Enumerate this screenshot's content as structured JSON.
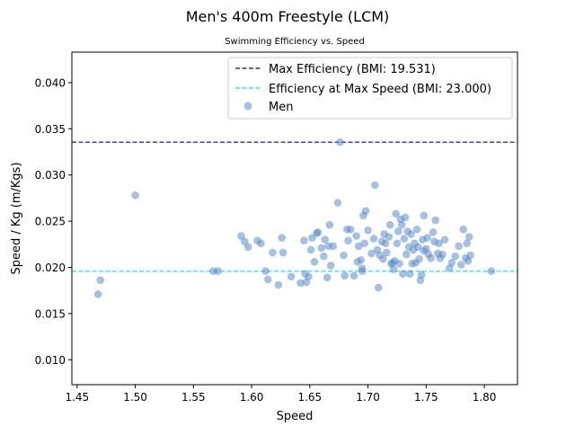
{
  "chart_data": {
    "type": "scatter",
    "title": "Men's 400m Freestyle (LCM)",
    "subtitle": "Swimming Efficiency vs. Speed",
    "xlabel": "Speed",
    "ylabel": "Speed / Kg (m/Kgs)",
    "xlim": [
      1.4455,
      1.8285
    ],
    "ylim": [
      0.0073,
      0.0433
    ],
    "xticks": [
      1.45,
      1.5,
      1.55,
      1.6,
      1.65,
      1.7,
      1.75,
      1.8
    ],
    "xtick_labels": [
      "1.45",
      "1.50",
      "1.55",
      "1.60",
      "1.65",
      "1.70",
      "1.75",
      "1.80"
    ],
    "yticks": [
      0.01,
      0.015,
      0.02,
      0.025,
      0.03,
      0.035,
      0.04
    ],
    "ytick_labels": [
      "0.010",
      "0.015",
      "0.020",
      "0.025",
      "0.030",
      "0.035",
      "0.040"
    ],
    "grid": false,
    "legend_position": "top-right",
    "reference_lines": [
      {
        "label": "Max Efficiency (BMI: 19.531)",
        "y": 0.03355,
        "color": "#0000cc",
        "style": "dashed"
      },
      {
        "label": "Efficiency at Max Speed (BMI: 23.000)",
        "y": 0.01958,
        "color": "#00e5ee",
        "style": "dashed"
      }
    ],
    "series": [
      {
        "name": "Men",
        "color": "#5b8cc6",
        "points": [
          [
            1.468,
            0.0171
          ],
          [
            1.47,
            0.0186
          ],
          [
            1.5,
            0.0278
          ],
          [
            1.567,
            0.0196
          ],
          [
            1.571,
            0.0196
          ],
          [
            1.591,
            0.0234
          ],
          [
            1.594,
            0.0228
          ],
          [
            1.597,
            0.0222
          ],
          [
            1.605,
            0.0229
          ],
          [
            1.608,
            0.0226
          ],
          [
            1.612,
            0.0196
          ],
          [
            1.614,
            0.0187
          ],
          [
            1.618,
            0.0216
          ],
          [
            1.623,
            0.0181
          ],
          [
            1.626,
            0.0232
          ],
          [
            1.627,
            0.0216
          ],
          [
            1.634,
            0.019
          ],
          [
            1.642,
            0.0183
          ],
          [
            1.645,
            0.0229
          ],
          [
            1.646,
            0.0193
          ],
          [
            1.647,
            0.0184
          ],
          [
            1.649,
            0.019
          ],
          [
            1.651,
            0.0219
          ],
          [
            1.652,
            0.0232
          ],
          [
            1.654,
            0.0206
          ],
          [
            1.656,
            0.0237
          ],
          [
            1.657,
            0.0238
          ],
          [
            1.66,
            0.0221
          ],
          [
            1.662,
            0.0212
          ],
          [
            1.663,
            0.023
          ],
          [
            1.665,
            0.0189
          ],
          [
            1.666,
            0.0223
          ],
          [
            1.667,
            0.0246
          ],
          [
            1.668,
            0.0202
          ],
          [
            1.67,
            0.0223
          ],
          [
            1.674,
            0.027
          ],
          [
            1.676,
            0.03355
          ],
          [
            1.679,
            0.0213
          ],
          [
            1.68,
            0.0191
          ],
          [
            1.682,
            0.0241
          ],
          [
            1.683,
            0.0229
          ],
          [
            1.685,
            0.0241
          ],
          [
            1.688,
            0.0191
          ],
          [
            1.69,
            0.0234
          ],
          [
            1.691,
            0.0206
          ],
          [
            1.692,
            0.0223
          ],
          [
            1.694,
            0.0208
          ],
          [
            1.695,
            0.0199
          ],
          [
            1.695,
            0.0196
          ],
          [
            1.696,
            0.0256
          ],
          [
            1.697,
            0.0226
          ],
          [
            1.698,
            0.0261
          ],
          [
            1.7,
            0.024
          ],
          [
            1.703,
            0.0215
          ],
          [
            1.705,
            0.0231
          ],
          [
            1.706,
            0.0289
          ],
          [
            1.708,
            0.0219
          ],
          [
            1.709,
            0.0178
          ],
          [
            1.71,
            0.0213
          ],
          [
            1.712,
            0.0228
          ],
          [
            1.713,
            0.0209
          ],
          [
            1.714,
            0.0236
          ],
          [
            1.715,
            0.0226
          ],
          [
            1.716,
            0.0216
          ],
          [
            1.718,
            0.0233
          ],
          [
            1.719,
            0.0246
          ],
          [
            1.72,
            0.0204
          ],
          [
            1.721,
            0.0205
          ],
          [
            1.722,
            0.0198
          ],
          [
            1.723,
            0.0207
          ],
          [
            1.724,
            0.0258
          ],
          [
            1.725,
            0.0226
          ],
          [
            1.726,
            0.0239
          ],
          [
            1.727,
            0.0204
          ],
          [
            1.728,
            0.0252
          ],
          [
            1.729,
            0.0246
          ],
          [
            1.73,
            0.0193
          ],
          [
            1.731,
            0.0231
          ],
          [
            1.732,
            0.0254
          ],
          [
            1.733,
            0.0214
          ],
          [
            1.734,
            0.0239
          ],
          [
            1.735,
            0.0222
          ],
          [
            1.736,
            0.0193
          ],
          [
            1.737,
            0.0236
          ],
          [
            1.738,
            0.0204
          ],
          [
            1.739,
            0.0219
          ],
          [
            1.74,
            0.0226
          ],
          [
            1.741,
            0.0205
          ],
          [
            1.742,
            0.0241
          ],
          [
            1.743,
            0.0222
          ],
          [
            1.744,
            0.0209
          ],
          [
            1.745,
            0.0186
          ],
          [
            1.746,
            0.0192
          ],
          [
            1.747,
            0.023
          ],
          [
            1.748,
            0.0218
          ],
          [
            1.748,
            0.0256
          ],
          [
            1.75,
            0.022
          ],
          [
            1.751,
            0.0232
          ],
          [
            1.752,
            0.0214
          ],
          [
            1.754,
            0.021
          ],
          [
            1.756,
            0.0238
          ],
          [
            1.757,
            0.0228
          ],
          [
            1.758,
            0.0251
          ],
          [
            1.76,
            0.0215
          ],
          [
            1.761,
            0.0226
          ],
          [
            1.762,
            0.021
          ],
          [
            1.764,
            0.0214
          ],
          [
            1.766,
            0.023
          ],
          [
            1.77,
            0.0199
          ],
          [
            1.772,
            0.0205
          ],
          [
            1.775,
            0.0212
          ],
          [
            1.778,
            0.0223
          ],
          [
            1.78,
            0.0203
          ],
          [
            1.782,
            0.0241
          ],
          [
            1.784,
            0.021
          ],
          [
            1.785,
            0.0226
          ],
          [
            1.786,
            0.0207
          ],
          [
            1.787,
            0.0233
          ],
          [
            1.788,
            0.0213
          ],
          [
            1.806,
            0.0196
          ]
        ]
      }
    ]
  }
}
